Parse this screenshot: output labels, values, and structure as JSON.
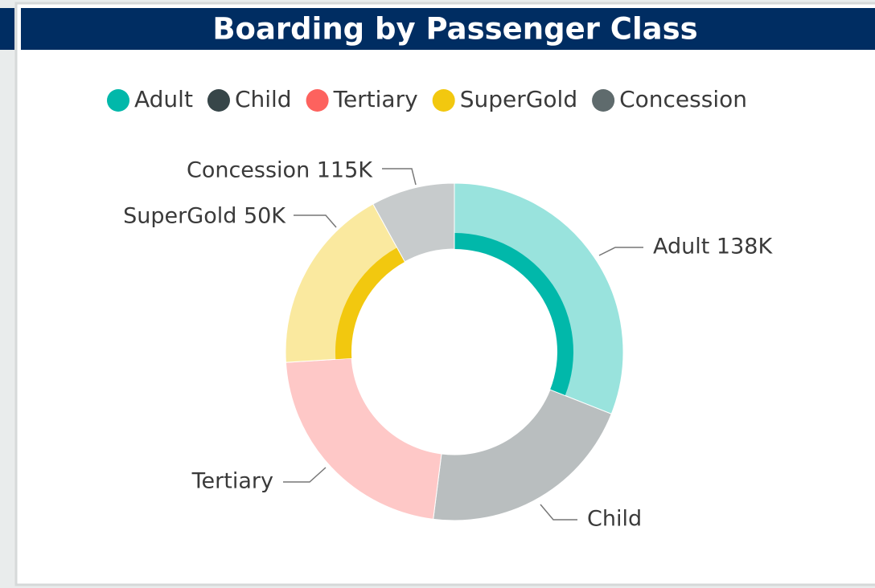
{
  "chart_data": {
    "type": "donut",
    "title": "Boarding by Passenger Class",
    "categories": [
      "Adult",
      "Child",
      "Tertiary",
      "SuperGold",
      "Concession"
    ],
    "colors": [
      "#01b8aa",
      "#374649",
      "#fd625e",
      "#f2c80f",
      "#5f6b6d"
    ],
    "values": [
      31,
      21,
      22,
      18,
      8
    ],
    "highlighted": [
      true,
      false,
      false,
      true,
      false
    ],
    "data_labels": [
      "Adult 138K",
      "Child",
      "Tertiary",
      "SuperGold 50K",
      "Concession 115K"
    ],
    "legend": "top"
  }
}
